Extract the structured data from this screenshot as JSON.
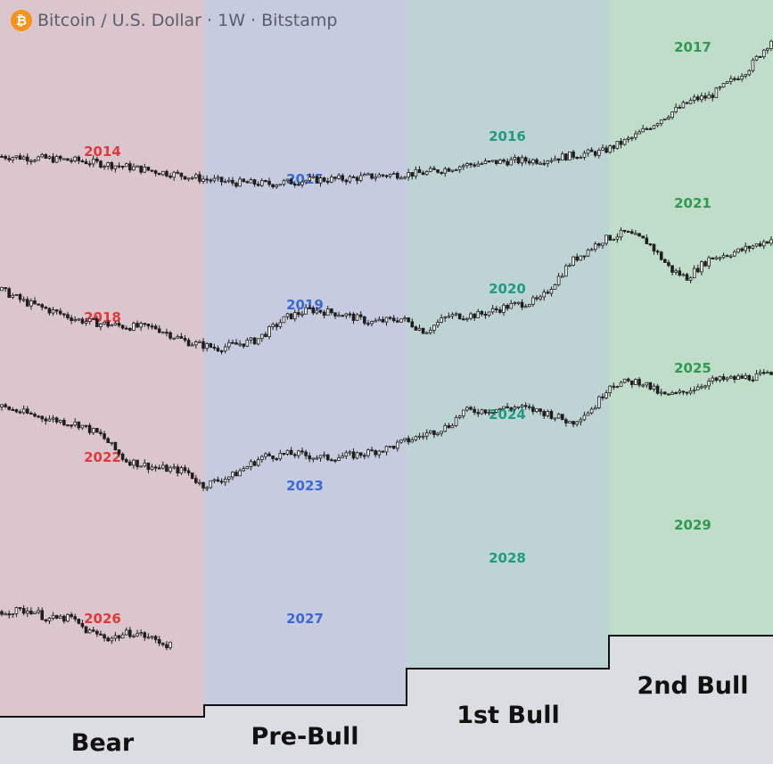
{
  "header": {
    "icon": "bitcoin-icon",
    "title": "Bitcoin / U.S. Dollar · 1W · Bitstamp"
  },
  "colors": {
    "bear_bg": "#dcc6cd",
    "prebull_bg": "#c6cbdf",
    "firstbull_bg": "#bdd3d4",
    "secondbull_bg": "#bfddc9",
    "bear_label": "#e0393b",
    "prebull_label": "#3a6ad8",
    "firstbull_label": "#1f9b84",
    "secondbull_label": "#2f9a4f",
    "candle": "#1e1e1e",
    "step_fill": "#dcdde2"
  },
  "phases": [
    "Bear",
    "Pre-Bull",
    "1st Bull",
    "2nd Bull"
  ],
  "chart_data": {
    "type": "candlestick",
    "title": "Bitcoin / U.S. Dollar · 1W · Bitstamp",
    "phases": [
      "Bear",
      "Pre-Bull",
      "1st Bull",
      "2nd Bull"
    ],
    "rows": [
      {
        "labels": [
          "2014",
          "2015",
          "2016",
          "2017"
        ],
        "trend": [
          [
            0,
            0.69
          ],
          [
            0.05,
            0.66
          ],
          [
            0.1,
            0.62
          ],
          [
            0.16,
            0.53
          ],
          [
            0.22,
            0.42
          ],
          [
            0.27,
            0.32
          ],
          [
            0.3,
            0.28
          ],
          [
            0.35,
            0.26
          ],
          [
            0.4,
            0.32
          ],
          [
            0.45,
            0.34
          ],
          [
            0.5,
            0.4
          ],
          [
            0.55,
            0.43
          ],
          [
            0.6,
            0.55
          ],
          [
            0.65,
            0.61
          ],
          [
            0.7,
            0.63
          ],
          [
            0.75,
            0.72
          ],
          [
            0.78,
            0.76
          ],
          [
            0.82,
            0.98
          ],
          [
            0.86,
            1.3
          ],
          [
            0.9,
            1.58
          ],
          [
            0.92,
            1.62
          ],
          [
            0.95,
            1.88
          ],
          [
            0.97,
            2.05
          ],
          [
            1.0,
            2.5
          ]
        ]
      },
      {
        "labels": [
          "2018",
          "2019",
          "2020",
          "2021"
        ],
        "trend": [
          [
            0,
            1.1
          ],
          [
            0.03,
            0.92
          ],
          [
            0.07,
            0.76
          ],
          [
            0.1,
            0.64
          ],
          [
            0.13,
            0.58
          ],
          [
            0.16,
            0.54
          ],
          [
            0.2,
            0.52
          ],
          [
            0.24,
            0.3
          ],
          [
            0.28,
            0.2
          ],
          [
            0.33,
            0.32
          ],
          [
            0.37,
            0.68
          ],
          [
            0.4,
            0.8
          ],
          [
            0.44,
            0.74
          ],
          [
            0.48,
            0.6
          ],
          [
            0.52,
            0.66
          ],
          [
            0.55,
            0.46
          ],
          [
            0.58,
            0.7
          ],
          [
            0.62,
            0.72
          ],
          [
            0.66,
            0.86
          ],
          [
            0.7,
            0.95
          ],
          [
            0.74,
            1.55
          ],
          [
            0.78,
            1.88
          ],
          [
            0.81,
            2.0
          ],
          [
            0.84,
            1.85
          ],
          [
            0.87,
            1.42
          ],
          [
            0.89,
            1.3
          ],
          [
            0.92,
            1.6
          ],
          [
            0.96,
            1.72
          ],
          [
            1.0,
            1.9
          ]
        ]
      },
      {
        "labels": [
          "2022",
          "2023",
          "2024",
          "2025"
        ],
        "trend": [
          [
            0,
            1.55
          ],
          [
            0.04,
            1.42
          ],
          [
            0.08,
            1.32
          ],
          [
            0.1,
            1.28
          ],
          [
            0.13,
            1.1
          ],
          [
            0.16,
            0.72
          ],
          [
            0.2,
            0.6
          ],
          [
            0.24,
            0.55
          ],
          [
            0.26,
            0.32
          ],
          [
            0.3,
            0.48
          ],
          [
            0.34,
            0.78
          ],
          [
            0.38,
            0.82
          ],
          [
            0.42,
            0.75
          ],
          [
            0.46,
            0.8
          ],
          [
            0.5,
            0.9
          ],
          [
            0.54,
            1.08
          ],
          [
            0.58,
            1.25
          ],
          [
            0.6,
            1.48
          ],
          [
            0.63,
            1.5
          ],
          [
            0.67,
            1.55
          ],
          [
            0.71,
            1.45
          ],
          [
            0.74,
            1.3
          ],
          [
            0.77,
            1.55
          ],
          [
            0.79,
            1.9
          ],
          [
            0.83,
            1.95
          ],
          [
            0.86,
            1.72
          ],
          [
            0.88,
            1.75
          ],
          [
            0.92,
            1.95
          ],
          [
            1.0,
            2.05
          ]
        ]
      },
      {
        "labels": [
          "2026",
          "2027",
          "2028",
          "2029"
        ],
        "trend": [
          [
            0,
            0.82
          ],
          [
            0.04,
            0.84
          ],
          [
            0.06,
            0.7
          ],
          [
            0.09,
            0.72
          ],
          [
            0.11,
            0.52
          ],
          [
            0.14,
            0.4
          ],
          [
            0.17,
            0.5
          ],
          [
            0.19,
            0.42
          ],
          [
            0.22,
            0.28
          ]
        ]
      }
    ]
  }
}
